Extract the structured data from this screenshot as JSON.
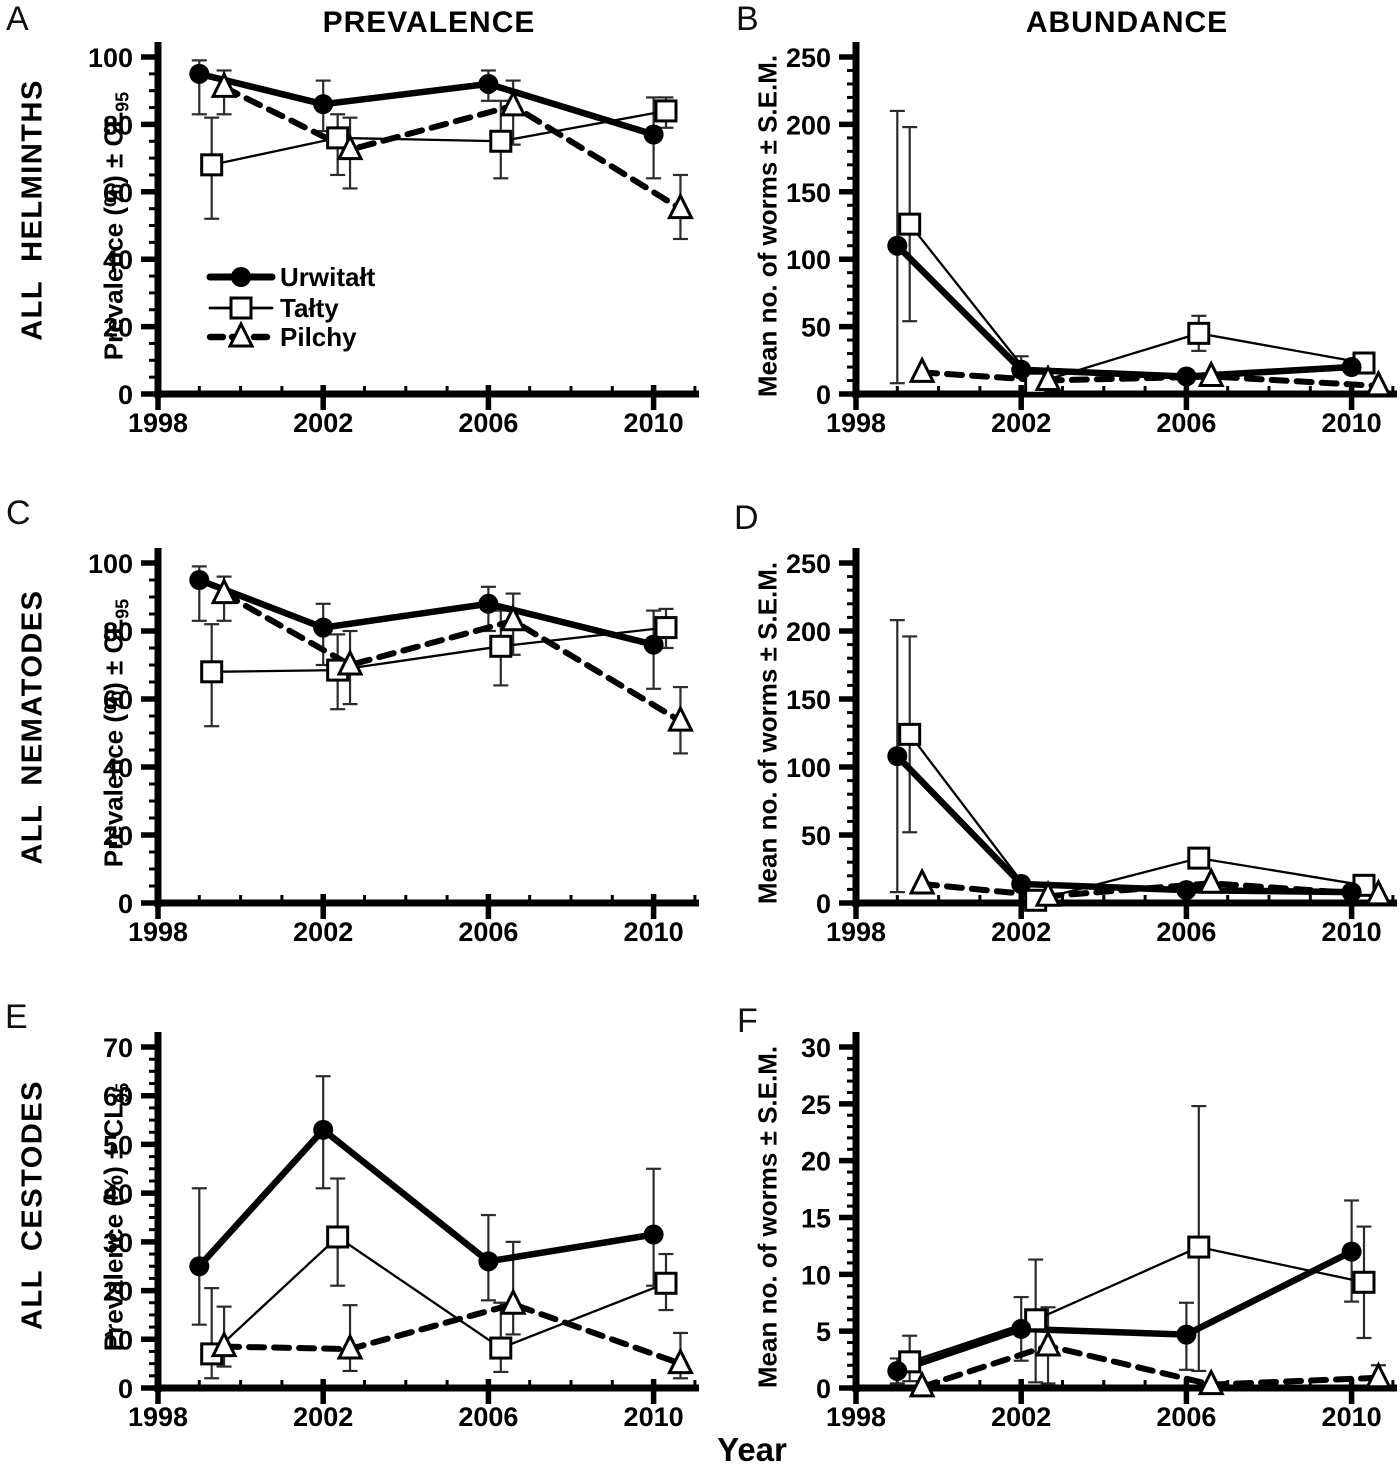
{
  "figure": {
    "column_headers": [
      "PREVALENCE",
      "ABUNDANCE"
    ],
    "row_labels": [
      "ALL HELMINTHS",
      "ALL NEMATODES",
      "ALL CESTODES"
    ],
    "x_axis_label": "Year",
    "legend": [
      {
        "name": "Urwitałt",
        "marker": "filled-circle",
        "line": "thick-solid"
      },
      {
        "name": "Tałty",
        "marker": "open-square",
        "line": "thin-solid"
      },
      {
        "name": "Pilchy",
        "marker": "open-triangle",
        "line": "thick-dashed"
      }
    ],
    "colors": {
      "ink": "#000000",
      "error_bar": "#2b2b2b",
      "open_marker_fill": "#ffffff"
    }
  },
  "chart_data": [
    {
      "panel": "A",
      "type": "line",
      "title": "PREVALENCE",
      "ylabel": "Prevalence (%) ± CL",
      "ylabel_sub": "95",
      "ylim": [
        0,
        100
      ],
      "yticks": [
        0,
        20,
        40,
        60,
        80,
        100
      ],
      "y_minor_step": 5,
      "xticks": [
        1998,
        2002,
        2006,
        2010
      ],
      "x_minor_step": 1,
      "xlim": [
        1998,
        2011.1
      ],
      "grid": false,
      "legend_position": "inside-lower-left",
      "series": [
        {
          "name": "Urwitałt",
          "x": [
            1999,
            2002,
            2006,
            2010
          ],
          "y": [
            95,
            86,
            92,
            77
          ],
          "err_lo": [
            83,
            78,
            87,
            64
          ],
          "err_hi": [
            99,
            93,
            96,
            88
          ]
        },
        {
          "name": "Tałty",
          "x": [
            1999.3,
            2002.35,
            2006.3,
            2010.3
          ],
          "y": [
            68,
            76,
            75,
            84
          ],
          "err_lo": [
            52,
            65,
            64,
            79
          ],
          "err_hi": [
            82,
            83,
            87,
            88
          ]
        },
        {
          "name": "Pilchy",
          "x": [
            1999.6,
            2002.65,
            2006.6,
            2010.65
          ],
          "y": [
            91,
            72.5,
            85.5,
            55
          ],
          "err_lo": [
            83,
            61,
            74,
            46
          ],
          "err_hi": [
            96,
            82,
            93,
            65
          ]
        }
      ]
    },
    {
      "panel": "B",
      "type": "line",
      "title": "ABUNDANCE",
      "ylabel": "Mean no. of worms ± S.E.M.",
      "ylabel_sub": "",
      "ylim": [
        0,
        250
      ],
      "yticks": [
        0,
        50,
        100,
        150,
        200,
        250
      ],
      "y_minor_step": 10,
      "xticks": [
        1998,
        2002,
        2006,
        2010
      ],
      "x_minor_step": 1,
      "xlim": [
        1998,
        2011.1
      ],
      "grid": false,
      "series": [
        {
          "name": "Urwitałt",
          "x": [
            1999,
            2002,
            2006,
            2010
          ],
          "y": [
            110,
            18,
            13,
            20
          ],
          "err_lo": [
            8,
            13,
            null,
            null
          ],
          "err_hi": [
            210,
            28,
            null,
            null
          ]
        },
        {
          "name": "Tałty",
          "x": [
            1999.3,
            2002.35,
            2006.3,
            2010.3
          ],
          "y": [
            126,
            8,
            45,
            23
          ],
          "err_lo": [
            54,
            null,
            32,
            17
          ],
          "err_hi": [
            198,
            null,
            58,
            28
          ]
        },
        {
          "name": "Pilchy",
          "x": [
            1999.6,
            2002.65,
            2006.6,
            2010.65
          ],
          "y": [
            16,
            10,
            13,
            6
          ],
          "err_lo": [
            null,
            null,
            null,
            null
          ],
          "err_hi": [
            null,
            null,
            null,
            null
          ]
        }
      ]
    },
    {
      "panel": "C",
      "type": "line",
      "title": "",
      "ylabel": "Prevalence (%) ± CL",
      "ylabel_sub": "95",
      "ylim": [
        0,
        100
      ],
      "yticks": [
        0,
        20,
        40,
        60,
        80,
        100
      ],
      "y_minor_step": 5,
      "xticks": [
        1998,
        2002,
        2006,
        2010
      ],
      "x_minor_step": 1,
      "xlim": [
        1998,
        2011.1
      ],
      "grid": false,
      "series": [
        {
          "name": "Urwitałt",
          "x": [
            1999,
            2002,
            2006,
            2010
          ],
          "y": [
            95,
            81,
            88,
            76
          ],
          "err_lo": [
            83,
            70,
            80,
            63
          ],
          "err_hi": [
            99,
            88,
            93,
            86
          ]
        },
        {
          "name": "Tałty",
          "x": [
            1999.3,
            2002.35,
            2006.3,
            2010.3
          ],
          "y": [
            68,
            68.5,
            75.5,
            81
          ],
          "err_lo": [
            52,
            57,
            64,
            75
          ],
          "err_hi": [
            82,
            79,
            86,
            86.5
          ]
        },
        {
          "name": "Pilchy",
          "x": [
            1999.6,
            2002.65,
            2006.6,
            2010.65
          ],
          "y": [
            91,
            70,
            83,
            53.5
          ],
          "err_lo": [
            83,
            58.5,
            73,
            44
          ],
          "err_hi": [
            96,
            80,
            91,
            63.5
          ]
        }
      ]
    },
    {
      "panel": "D",
      "type": "line",
      "title": "",
      "ylabel": "Mean no. of worms ± S.E.M.",
      "ylabel_sub": "",
      "ylim": [
        0,
        250
      ],
      "yticks": [
        0,
        50,
        100,
        150,
        200,
        250
      ],
      "y_minor_step": 10,
      "xticks": [
        1998,
        2002,
        2006,
        2010
      ],
      "x_minor_step": 1,
      "xlim": [
        1998,
        2011.1
      ],
      "grid": false,
      "series": [
        {
          "name": "Urwitałt",
          "x": [
            1999,
            2002,
            2006,
            2010
          ],
          "y": [
            108,
            14,
            9.5,
            8
          ],
          "err_lo": [
            8,
            null,
            null,
            null
          ],
          "err_hi": [
            208,
            null,
            null,
            null
          ]
        },
        {
          "name": "Tałty",
          "x": [
            1999.3,
            2002.35,
            2006.3,
            2010.3
          ],
          "y": [
            124,
            2,
            33,
            13
          ],
          "err_lo": [
            52,
            null,
            null,
            null
          ],
          "err_hi": [
            196,
            null,
            null,
            null
          ]
        },
        {
          "name": "Pilchy",
          "x": [
            1999.6,
            2002.65,
            2006.6,
            2010.65
          ],
          "y": [
            14,
            5,
            14.5,
            6
          ],
          "err_lo": [
            null,
            null,
            null,
            null
          ],
          "err_hi": [
            null,
            null,
            null,
            null
          ]
        }
      ]
    },
    {
      "panel": "E",
      "type": "line",
      "title": "",
      "ylabel": "Prevalence (%) ± CL",
      "ylabel_sub": "95",
      "ylim": [
        0,
        70
      ],
      "yticks": [
        0,
        10,
        20,
        30,
        40,
        50,
        60,
        70
      ],
      "y_minor_step": 2.5,
      "xticks": [
        1998,
        2002,
        2006,
        2010
      ],
      "x_minor_step": 1,
      "xlim": [
        1998,
        2011.1
      ],
      "grid": false,
      "series": [
        {
          "name": "Urwitałt",
          "x": [
            1999,
            2002,
            2006,
            2010
          ],
          "y": [
            25,
            53,
            26,
            31.5
          ],
          "err_lo": [
            13,
            41,
            18,
            21
          ],
          "err_hi": [
            41,
            64,
            35.5,
            45
          ]
        },
        {
          "name": "Tałty",
          "x": [
            1999.3,
            2002.35,
            2006.3,
            2010.3
          ],
          "y": [
            7,
            31,
            8.2,
            21.5
          ],
          "err_lo": [
            2,
            21,
            3.3,
            16
          ],
          "err_hi": [
            20.5,
            43,
            17.5,
            27.5
          ]
        },
        {
          "name": "Pilchy",
          "x": [
            1999.6,
            2002.65,
            2006.6,
            2010.65
          ],
          "y": [
            8.5,
            8,
            17.2,
            5
          ],
          "err_lo": [
            4.4,
            3.5,
            11,
            2
          ],
          "err_hi": [
            16.7,
            17,
            30,
            11.3
          ]
        }
      ]
    },
    {
      "panel": "F",
      "type": "line",
      "title": "",
      "ylabel": "Mean no. of worms ± S.E.M.",
      "ylabel_sub": "",
      "ylim": [
        0,
        30
      ],
      "yticks": [
        0,
        5,
        10,
        15,
        20,
        25,
        30
      ],
      "y_minor_step": 1,
      "xticks": [
        1998,
        2002,
        2006,
        2010
      ],
      "x_minor_step": 1,
      "xlim": [
        1998,
        2011.1
      ],
      "grid": false,
      "series": [
        {
          "name": "Urwitałt",
          "x": [
            1999,
            2002,
            2006,
            2010
          ],
          "y": [
            1.5,
            5.2,
            4.7,
            12
          ],
          "err_lo": [
            0.4,
            2.4,
            1.6,
            7.6
          ],
          "err_hi": [
            2.6,
            8,
            7.5,
            16.5
          ]
        },
        {
          "name": "Tałty",
          "x": [
            1999.3,
            2002.35,
            2006.3,
            2010.3
          ],
          "y": [
            2.3,
            6,
            12.4,
            9.3
          ],
          "err_lo": [
            0.6,
            0.5,
            1.5,
            4.4
          ],
          "err_hi": [
            4.6,
            11.3,
            24.8,
            14.2
          ]
        },
        {
          "name": "Pilchy",
          "x": [
            1999.6,
            2002.65,
            2006.6,
            2010.65
          ],
          "y": [
            0.1,
            3.7,
            0.3,
            0.9
          ],
          "err_lo": [
            null,
            0.4,
            null,
            0.2
          ],
          "err_hi": [
            null,
            7.1,
            null,
            2
          ]
        }
      ]
    }
  ]
}
